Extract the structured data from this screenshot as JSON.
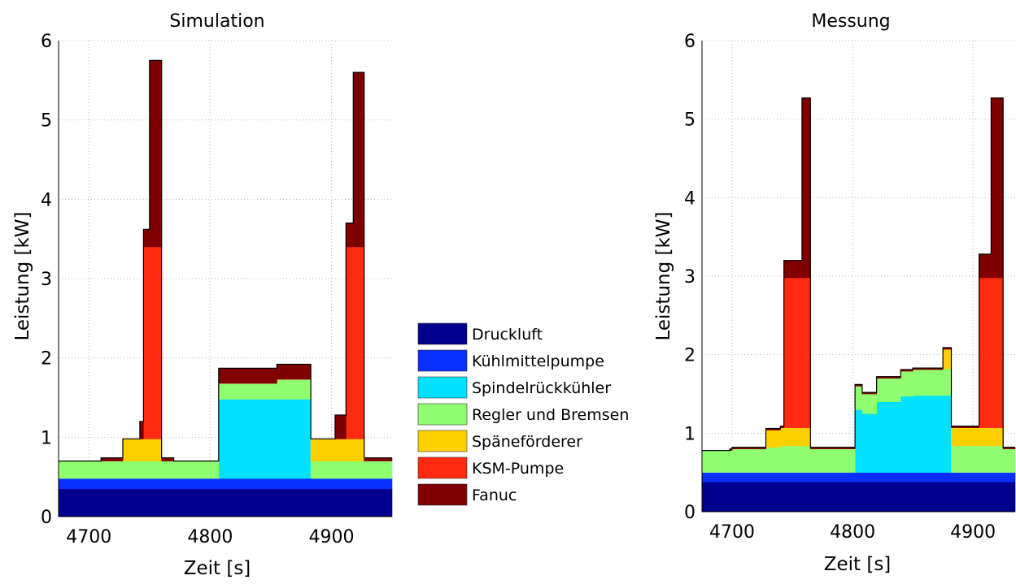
{
  "chart_data": [
    {
      "type": "area",
      "stacked": true,
      "title": "Simulation",
      "xlabel": "Zeit [s]",
      "ylabel": "Leistung [kW]",
      "xlim": [
        4675,
        4950
      ],
      "ylim": [
        0,
        6
      ],
      "xticks": [
        "4700",
        "4800",
        "4900"
      ],
      "yticks": [
        "0",
        "1",
        "2",
        "3",
        "4",
        "5",
        "6"
      ],
      "grid": true,
      "x": [
        4675,
        4710,
        4725,
        4728,
        4733,
        4742,
        4745,
        4750,
        4755,
        4760,
        4770,
        4800,
        4807,
        4850,
        4855,
        4880,
        4883,
        4896,
        4903,
        4908,
        4912,
        4916,
        4918,
        4922,
        4927,
        4935,
        4945,
        4950
      ],
      "series": [
        {
          "name": "Druckluft",
          "color": "#00008f",
          "values": [
            0.35,
            0.35,
            0.35,
            0.35,
            0.35,
            0.35,
            0.35,
            0.35,
            0.35,
            0.35,
            0.35,
            0.35,
            0.35,
            0.35,
            0.35,
            0.35,
            0.35,
            0.35,
            0.35,
            0.35,
            0.35,
            0.35,
            0.35,
            0.35,
            0.35,
            0.35,
            0.35,
            0.35
          ]
        },
        {
          "name": "Kühlmittelpumpe",
          "color": "#0a2eff",
          "values": [
            0.13,
            0.13,
            0.13,
            0.13,
            0.13,
            0.13,
            0.13,
            0.13,
            0.13,
            0.13,
            0.13,
            0.13,
            0.13,
            0.13,
            0.13,
            0.13,
            0.13,
            0.13,
            0.13,
            0.13,
            0.13,
            0.13,
            0.13,
            0.13,
            0.13,
            0.13,
            0.13,
            0.13
          ]
        },
        {
          "name": "Spindelrückkühler",
          "color": "#00e1ff",
          "values": [
            0,
            0,
            0,
            0,
            0,
            0,
            0,
            0,
            0,
            0,
            0,
            0,
            1.0,
            1.0,
            1.0,
            1.0,
            0,
            0,
            0,
            0,
            0,
            0,
            0,
            0,
            0,
            0,
            0,
            0
          ]
        },
        {
          "name": "Regler und Bremsen",
          "color": "#8fff6f",
          "values": [
            0.22,
            0.22,
            0.22,
            0.22,
            0.22,
            0.22,
            0.22,
            0.22,
            0.22,
            0.22,
            0.22,
            0.22,
            0.2,
            0.2,
            0.25,
            0.25,
            0.22,
            0.22,
            0.22,
            0.22,
            0.22,
            0.22,
            0.22,
            0.22,
            0.22,
            0.22,
            0.22,
            0.22
          ]
        },
        {
          "name": "Späneförderer",
          "color": "#ffd000",
          "values": [
            0,
            0,
            0,
            0.28,
            0.28,
            0.28,
            0.28,
            0.28,
            0.28,
            0,
            0,
            0,
            0,
            0,
            0,
            0,
            0.28,
            0.28,
            0.28,
            0.28,
            0.28,
            0.28,
            0.28,
            0.28,
            0,
            0,
            0,
            0
          ]
        },
        {
          "name": "KSM-Pumpe",
          "color": "#ff2a10",
          "values": [
            0,
            0,
            0,
            0,
            0,
            0,
            2.42,
            2.42,
            2.42,
            0,
            0,
            0,
            0,
            0,
            0,
            0,
            0,
            0,
            0,
            0,
            2.42,
            2.42,
            2.42,
            2.42,
            0,
            0,
            0,
            0
          ]
        },
        {
          "name": "Fanuc",
          "color": "#800000",
          "values": [
            0,
            0.04,
            0.04,
            0,
            0,
            0.22,
            0.22,
            2.35,
            2.35,
            0.04,
            0,
            0,
            0.19,
            0.19,
            0.19,
            0.19,
            0,
            0,
            0.3,
            0.3,
            0.3,
            0.3,
            2.2,
            2.2,
            0.04,
            0.04,
            0.04,
            0
          ]
        }
      ]
    },
    {
      "type": "area",
      "stacked": true,
      "title": "Messung",
      "xlabel": "Zeit [s]",
      "ylabel": "Leistung [kW]",
      "xlim": [
        4675,
        4935
      ],
      "ylim": [
        0,
        6
      ],
      "xticks": [
        "4700",
        "4800",
        "4900"
      ],
      "yticks": [
        "0",
        "1",
        "2",
        "3",
        "4",
        "5",
        "6"
      ],
      "grid": true,
      "x": [
        4675,
        4698,
        4700,
        4725,
        4728,
        4737,
        4740,
        4743,
        4758,
        4765,
        4800,
        4802,
        4808,
        4820,
        4840,
        4850,
        4855,
        4875,
        4878,
        4882,
        4885,
        4900,
        4903,
        4905,
        4915,
        4918,
        4925,
        4932,
        4935
      ],
      "series": [
        {
          "name": "Druckluft",
          "color": "#00008f",
          "values": [
            0.38,
            0.38,
            0.38,
            0.38,
            0.38,
            0.38,
            0.38,
            0.38,
            0.38,
            0.38,
            0.38,
            0.38,
            0.38,
            0.38,
            0.38,
            0.38,
            0.38,
            0.38,
            0.38,
            0.38,
            0.38,
            0.38,
            0.38,
            0.38,
            0.38,
            0.38,
            0.38,
            0.38,
            0.38
          ]
        },
        {
          "name": "Kühlmittelpumpe",
          "color": "#0a2eff",
          "values": [
            0.12,
            0.12,
            0.12,
            0.12,
            0.12,
            0.12,
            0.12,
            0.12,
            0.12,
            0.12,
            0.12,
            0.12,
            0.12,
            0.12,
            0.12,
            0.12,
            0.12,
            0.12,
            0.12,
            0.12,
            0.12,
            0.12,
            0.12,
            0.12,
            0.12,
            0.12,
            0.12,
            0.12,
            0.12
          ]
        },
        {
          "name": "Spindelrückkühler",
          "color": "#00e1ff",
          "values": [
            0,
            0,
            0,
            0,
            0,
            0,
            0,
            0,
            0,
            0,
            0,
            0.8,
            0.75,
            0.9,
            0.97,
            0.98,
            0.98,
            0.98,
            0.98,
            0,
            0,
            0,
            0,
            0,
            0,
            0,
            0,
            0,
            0
          ]
        },
        {
          "name": "Regler und Bremsen",
          "color": "#8fff6f",
          "values": [
            0.28,
            0.28,
            0.3,
            0.3,
            0.32,
            0.32,
            0.34,
            0.34,
            0.34,
            0.3,
            0.3,
            0.3,
            0.25,
            0.3,
            0.32,
            0.33,
            0.33,
            0.34,
            0.34,
            0.34,
            0.34,
            0.34,
            0.34,
            0.34,
            0.34,
            0.34,
            0.3,
            0.3,
            0.3
          ]
        },
        {
          "name": "Späneförderer",
          "color": "#ffd000",
          "values": [
            0,
            0,
            0,
            0,
            0.22,
            0.22,
            0.23,
            0.23,
            0.23,
            0,
            0,
            0,
            0,
            0,
            0,
            0,
            0,
            0.25,
            0.25,
            0.23,
            0.23,
            0.23,
            0.23,
            0.23,
            0.23,
            0.23,
            0,
            0,
            0
          ]
        },
        {
          "name": "KSM-Pumpe",
          "color": "#ff2a10",
          "values": [
            0,
            0,
            0,
            0,
            0,
            0,
            0,
            1.91,
            1.91,
            0,
            0,
            0,
            0,
            0,
            0,
            0,
            0,
            0,
            0,
            0,
            0,
            0,
            0,
            1.91,
            1.91,
            1.91,
            0,
            0,
            0
          ]
        },
        {
          "name": "Fanuc",
          "color": "#800000",
          "values": [
            0,
            0.02,
            0.02,
            0.02,
            0.02,
            0.02,
            0.02,
            0.22,
            2.29,
            0.02,
            0.02,
            0.02,
            0.02,
            0.02,
            0.02,
            0.02,
            0.02,
            0.02,
            0.02,
            0.02,
            0.02,
            0.02,
            0.02,
            0.3,
            2.29,
            2.29,
            0.02,
            0.02,
            0
          ]
        }
      ]
    }
  ],
  "legend": {
    "placement": "between-plots",
    "items": [
      {
        "label": "Druckluft",
        "color": "#00008f"
      },
      {
        "label": "Kühlmittelpumpe",
        "color": "#0a2eff"
      },
      {
        "label": "Spindelrückkühler",
        "color": "#00e1ff"
      },
      {
        "label": "Regler und Bremsen",
        "color": "#8fff6f"
      },
      {
        "label": "Späneförderer",
        "color": "#ffd000"
      },
      {
        "label": "KSM-Pumpe",
        "color": "#ff2a10"
      },
      {
        "label": "Fanuc",
        "color": "#800000"
      }
    ]
  }
}
